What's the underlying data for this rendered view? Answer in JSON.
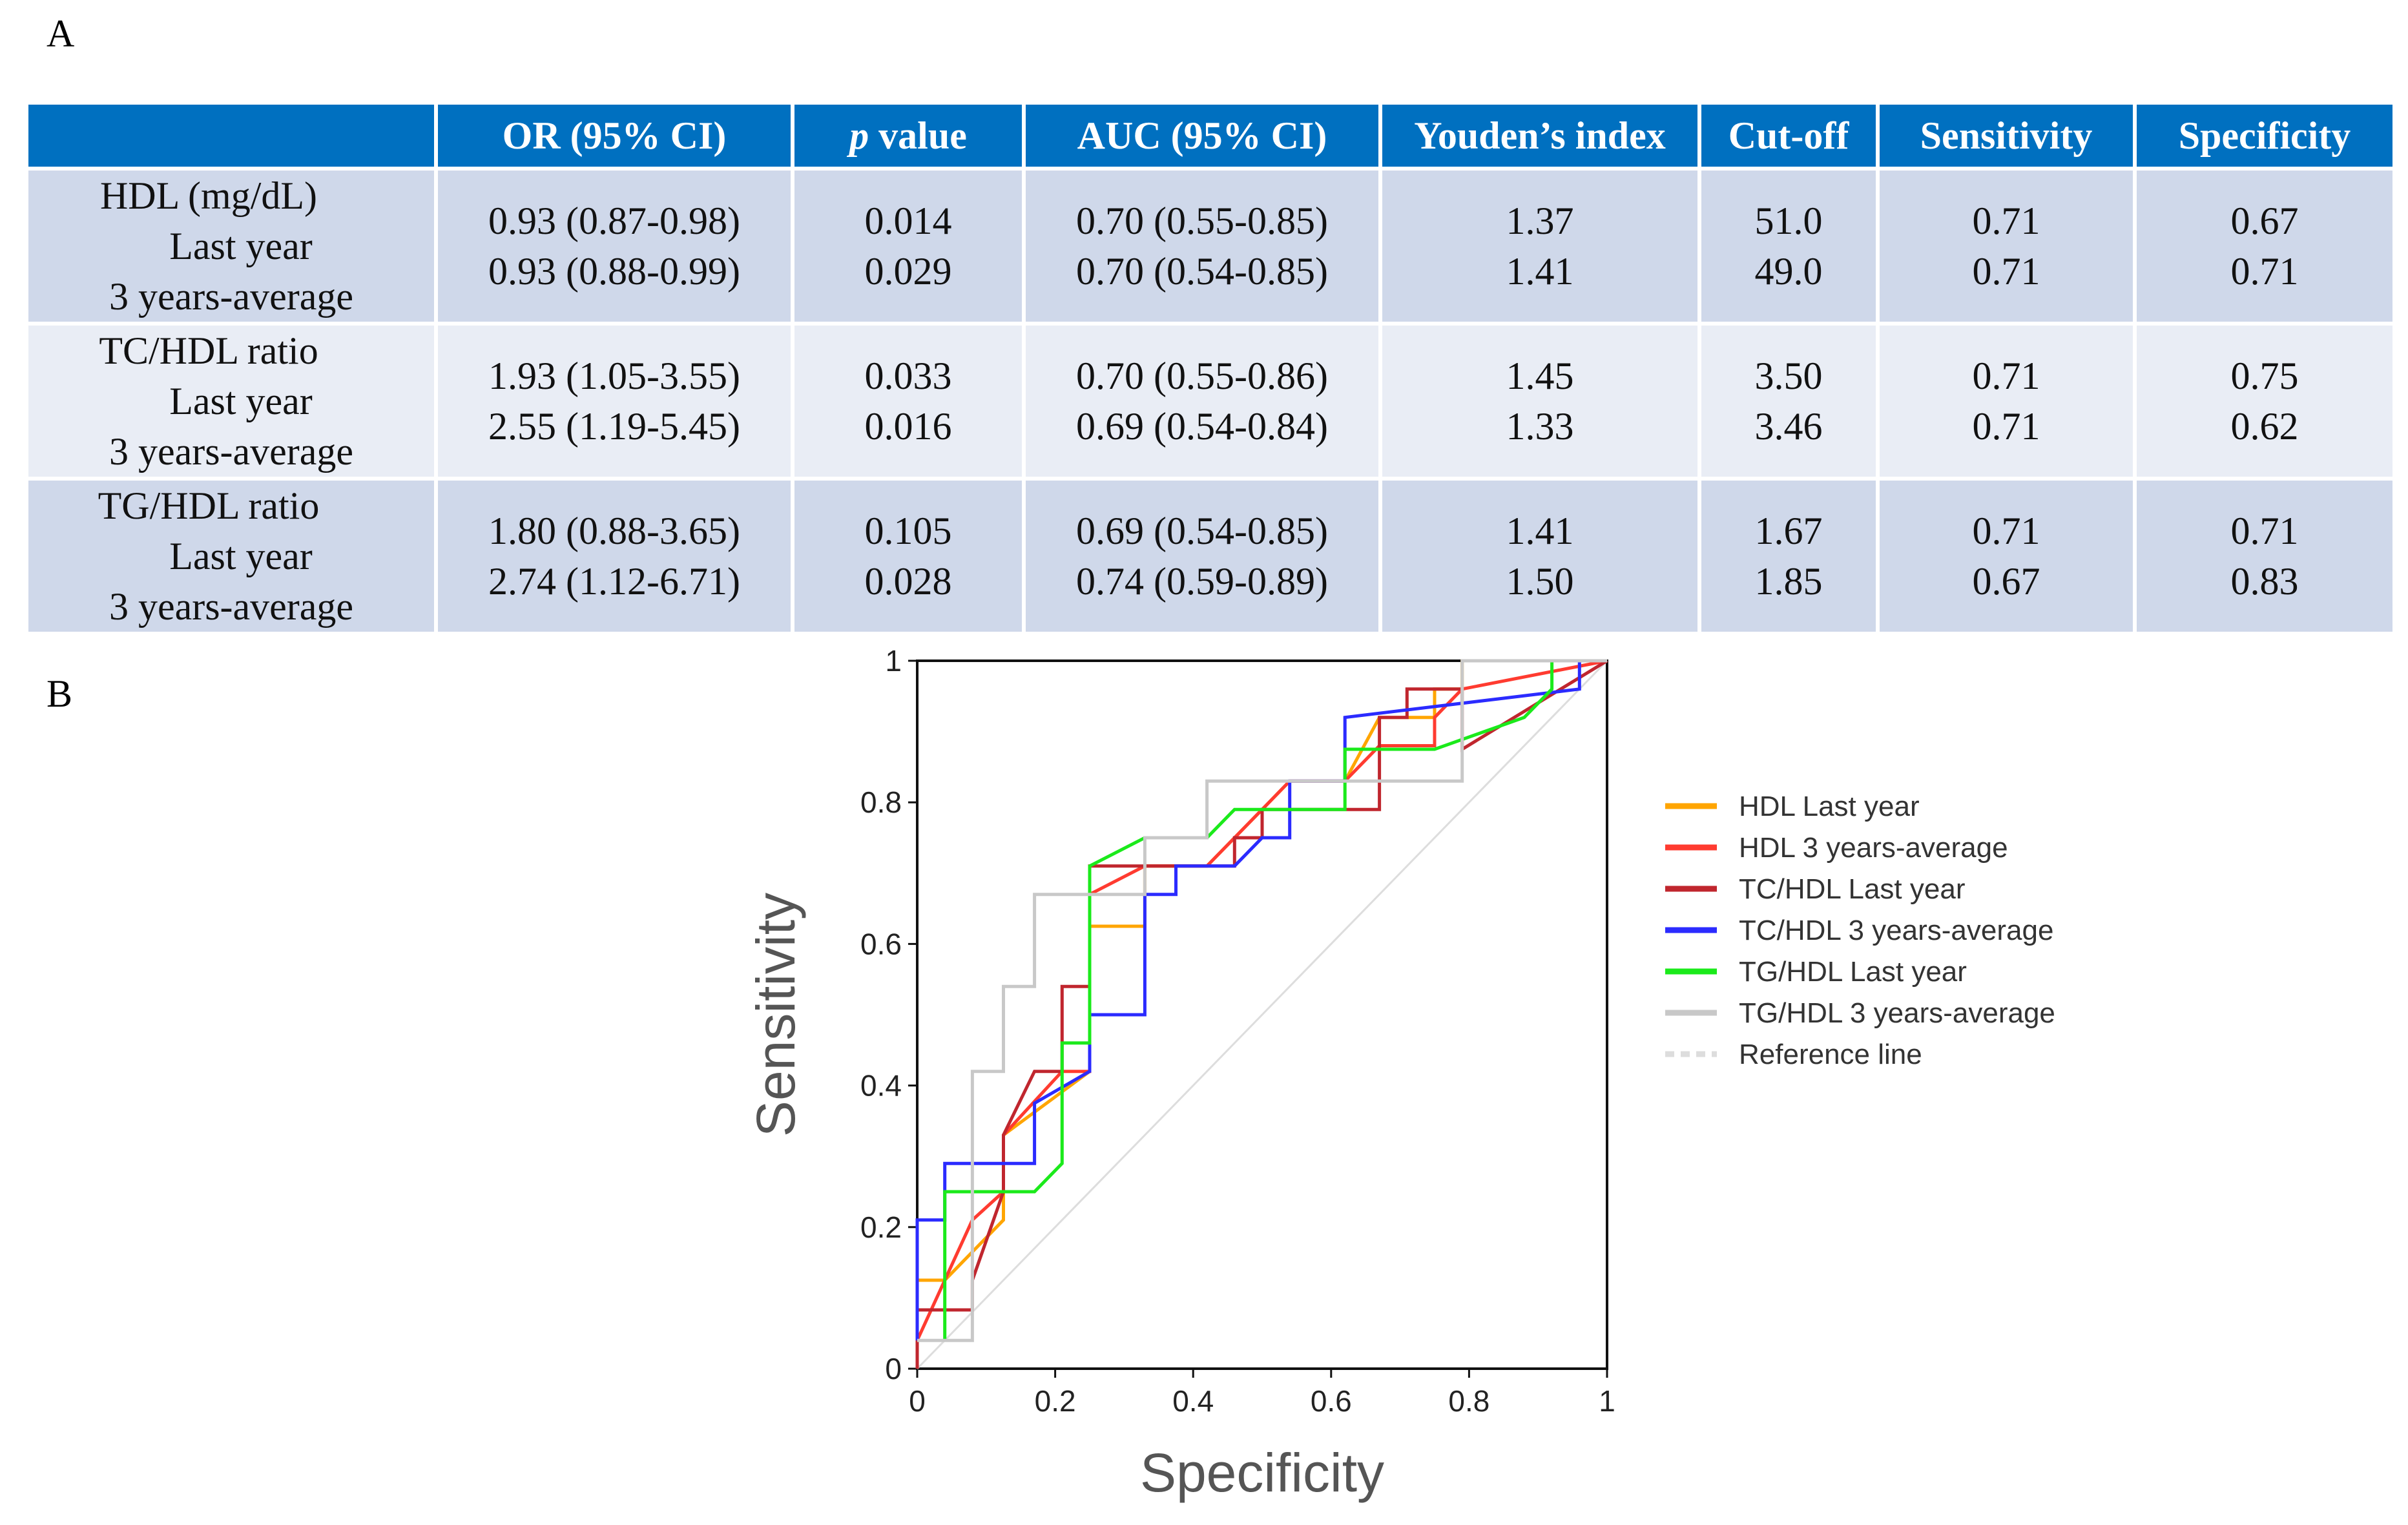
{
  "panel_a_label": "A",
  "panel_b_label": "B",
  "table": {
    "headers": [
      "",
      "OR (95% CI)",
      "p value",
      "AUC (95% CI)",
      "Youden’s index",
      "Cut-off",
      "Sensitivity",
      "Specificity"
    ],
    "header_p_italic": "p",
    "header_p_rest": " value",
    "groups": [
      {
        "name": "HDL (mg/dL)",
        "sub1": "Last year",
        "sub2": "3 years-average",
        "or": [
          "0.93 (0.87-0.98)",
          "0.93 (0.88-0.99)"
        ],
        "p": [
          "0.014",
          "0.029"
        ],
        "auc": [
          "0.70 (0.55-0.85)",
          "0.70 (0.54-0.85)"
        ],
        "youden": [
          "1.37",
          "1.41"
        ],
        "cutoff": [
          "51.0",
          "49.0"
        ],
        "sens": [
          "0.71",
          "0.71"
        ],
        "spec": [
          "0.67",
          "0.71"
        ]
      },
      {
        "name": "TC/HDL ratio",
        "sub1": "Last year",
        "sub2": "3 years-average",
        "or": [
          "1.93 (1.05-3.55)",
          "2.55 (1.19-5.45)"
        ],
        "p": [
          "0.033",
          "0.016"
        ],
        "auc": [
          "0.70 (0.55-0.86)",
          "0.69 (0.54-0.84)"
        ],
        "youden": [
          "1.45",
          "1.33"
        ],
        "cutoff": [
          "3.50",
          "3.46"
        ],
        "sens": [
          "0.71",
          "0.71"
        ],
        "spec": [
          "0.75",
          "0.62"
        ]
      },
      {
        "name": "TG/HDL ratio",
        "sub1": "Last year",
        "sub2": "3 years-average",
        "or": [
          "1.80 (0.88-3.65)",
          "2.74 (1.12-6.71)"
        ],
        "p": [
          "0.105",
          "0.028"
        ],
        "auc": [
          "0.69 (0.54-0.85)",
          "0.74 (0.59-0.89)"
        ],
        "youden": [
          "1.41",
          "1.50"
        ],
        "cutoff": [
          "1.67",
          "1.85"
        ],
        "sens": [
          "0.71",
          "0.67"
        ],
        "spec": [
          "0.71",
          "0.83"
        ]
      }
    ]
  },
  "chart_data": {
    "type": "line",
    "title": "",
    "xlabel": "Specificity",
    "ylabel": "Sensitivity",
    "xlim": [
      0,
      1
    ],
    "ylim": [
      0,
      1
    ],
    "xticks": [
      "0",
      "0.2",
      "0.4",
      "0.6",
      "0.8",
      "1"
    ],
    "yticks": [
      "0",
      "0.2",
      "0.4",
      "0.6",
      "0.8",
      "1"
    ],
    "legend_position": "right",
    "series": [
      {
        "name": "HDL Last year",
        "color": "#ffa500",
        "x": [
          0.0,
          0.0,
          0.04,
          0.125,
          0.125,
          0.25,
          0.25,
          0.33,
          0.33,
          0.42,
          0.5,
          0.54,
          0.62,
          0.67,
          0.75,
          0.75,
          0.79,
          0.79,
          1.0
        ],
        "y": [
          0.0,
          0.125,
          0.125,
          0.21,
          0.33,
          0.42,
          0.625,
          0.625,
          0.71,
          0.71,
          0.79,
          0.83,
          0.83,
          0.92,
          0.92,
          0.96,
          0.96,
          1.0,
          1.0
        ]
      },
      {
        "name": "HDL 3 years-average",
        "color": "#ff3b30",
        "x": [
          0.0,
          0.08,
          0.125,
          0.125,
          0.21,
          0.25,
          0.25,
          0.33,
          0.33,
          0.42,
          0.46,
          0.5,
          0.54,
          0.62,
          0.67,
          0.75,
          0.75,
          0.79,
          1.0
        ],
        "y": [
          0.04,
          0.21,
          0.25,
          0.33,
          0.42,
          0.42,
          0.67,
          0.71,
          0.71,
          0.71,
          0.75,
          0.79,
          0.83,
          0.83,
          0.88,
          0.88,
          0.92,
          0.96,
          1.0
        ]
      },
      {
        "name": "TC/HDL Last year",
        "color": "#c0262e",
        "x": [
          0.0,
          0.0,
          0.08,
          0.08,
          0.125,
          0.125,
          0.17,
          0.21,
          0.21,
          0.25,
          0.25,
          0.33,
          0.33,
          0.46,
          0.46,
          0.5,
          0.5,
          0.62,
          0.62,
          0.67,
          0.67,
          0.71,
          0.71,
          0.79,
          0.79,
          1.0
        ],
        "y": [
          0.0,
          0.083,
          0.083,
          0.125,
          0.25,
          0.33,
          0.42,
          0.42,
          0.54,
          0.54,
          0.71,
          0.71,
          0.71,
          0.71,
          0.75,
          0.75,
          0.79,
          0.79,
          0.79,
          0.79,
          0.92,
          0.92,
          0.96,
          0.96,
          0.875,
          1.0
        ]
      },
      {
        "name": "TC/HDL 3 years-average",
        "color": "#2b2bff",
        "x": [
          0.0,
          0.0,
          0.04,
          0.04,
          0.17,
          0.17,
          0.25,
          0.25,
          0.33,
          0.33,
          0.375,
          0.375,
          0.46,
          0.5,
          0.5,
          0.54,
          0.54,
          0.62,
          0.62,
          0.96,
          0.96
        ],
        "y": [
          0.04,
          0.21,
          0.21,
          0.29,
          0.29,
          0.375,
          0.42,
          0.5,
          0.5,
          0.67,
          0.67,
          0.71,
          0.71,
          0.75,
          0.75,
          0.75,
          0.83,
          0.83,
          0.92,
          0.96,
          1.0
        ]
      },
      {
        "name": "TG/HDL Last year",
        "color": "#1bea1b",
        "x": [
          0.04,
          0.04,
          0.17,
          0.21,
          0.21,
          0.25,
          0.25,
          0.33,
          0.42,
          0.46,
          0.62,
          0.62,
          0.75,
          0.88,
          0.92,
          0.92
        ],
        "y": [
          0.04,
          0.25,
          0.25,
          0.29,
          0.46,
          0.46,
          0.71,
          0.75,
          0.75,
          0.79,
          0.79,
          0.875,
          0.875,
          0.92,
          0.96,
          1.0
        ]
      },
      {
        "name": "TG/HDL 3 years-average",
        "color": "#c8c8c8",
        "x": [
          0.0,
          0.08,
          0.08,
          0.125,
          0.125,
          0.17,
          0.17,
          0.33,
          0.33,
          0.42,
          0.42,
          0.62,
          0.62,
          0.79,
          0.79,
          1.0
        ],
        "y": [
          0.04,
          0.04,
          0.42,
          0.42,
          0.54,
          0.54,
          0.67,
          0.67,
          0.75,
          0.75,
          0.83,
          0.83,
          0.83,
          0.83,
          1.0,
          1.0
        ]
      },
      {
        "name": "Reference line",
        "color": "#dddddd",
        "dashed": true,
        "x": [
          0,
          1
        ],
        "y": [
          0,
          1
        ]
      }
    ]
  }
}
